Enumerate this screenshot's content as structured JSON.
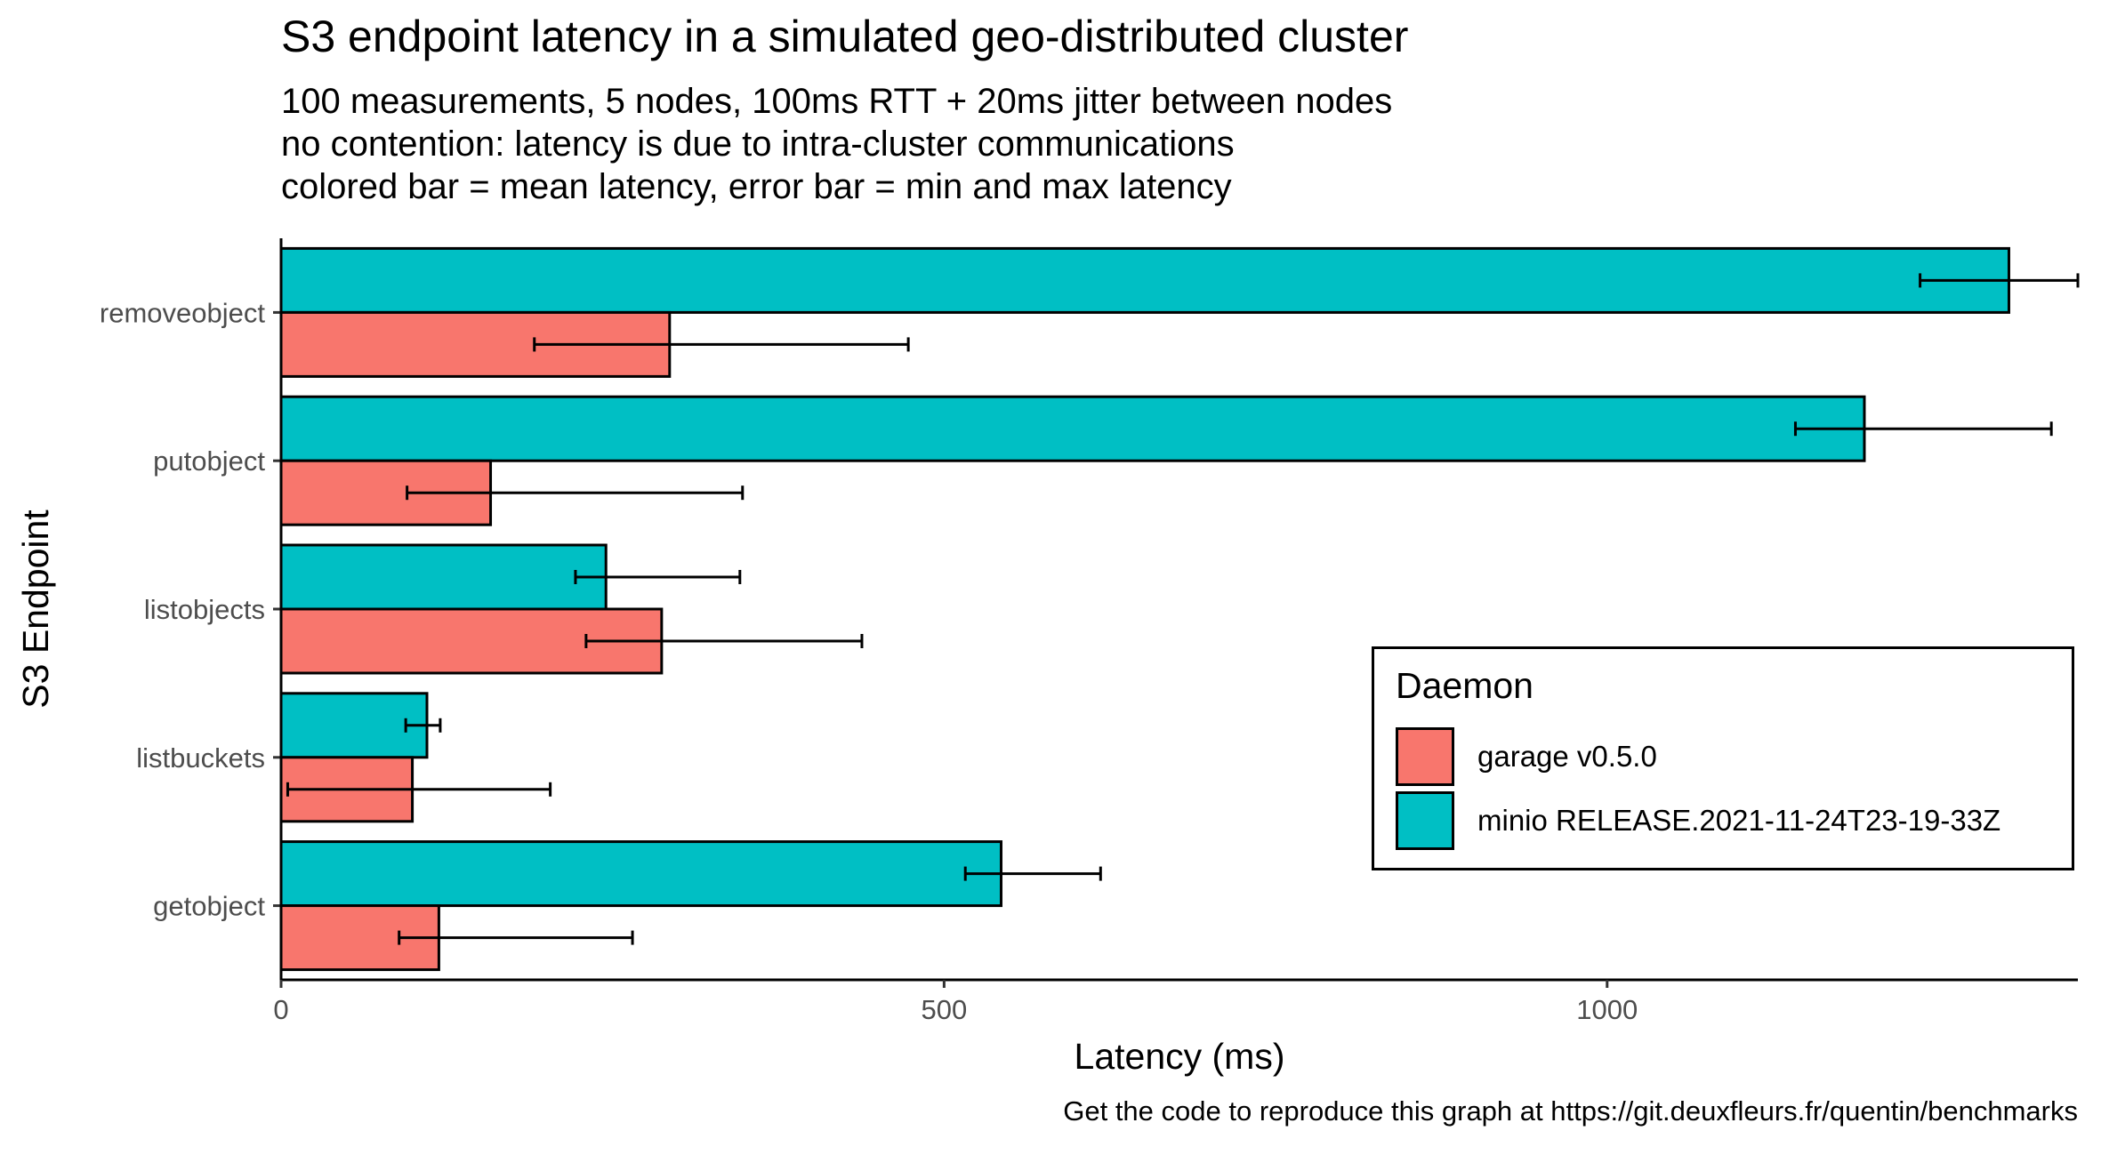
{
  "chart_data": {
    "type": "bar",
    "orientation": "horizontal",
    "title": "S3 endpoint latency in a simulated geo-distributed cluster",
    "subtitle": [
      "100 measurements, 5 nodes, 100ms RTT + 20ms jitter between nodes",
      "no contention: latency is due to intra-cluster communications",
      "colored bar = mean latency, error bar = min and max latency"
    ],
    "caption": "Get the code to reproduce this graph at https://git.deuxfleurs.fr/quentin/benchmarks",
    "xlabel": "Latency (ms)",
    "ylabel": "S3 Endpoint",
    "xlim": [
      0,
      1355
    ],
    "xticks": [
      0,
      500,
      1000
    ],
    "xtick_labels": [
      "0",
      "500",
      "1000"
    ],
    "categories": [
      "removeobject",
      "putobject",
      "listobjects",
      "listbuckets",
      "getobject"
    ],
    "grid": false,
    "legend": {
      "title": "Daemon",
      "position": "right"
    },
    "series": [
      {
        "name": "garage v0.5.0",
        "color": "#F8766D",
        "values": [
          293,
          158,
          287,
          99,
          119
        ],
        "min": [
          191,
          95,
          230,
          5,
          89
        ],
        "max": [
          473,
          348,
          438,
          203,
          265
        ]
      },
      {
        "name": "minio RELEASE.2021-11-24T23-19-33Z",
        "color": "#00BFC4",
        "values": [
          1303,
          1194,
          245,
          110,
          543
        ],
        "min": [
          1236,
          1142,
          222,
          94,
          516
        ],
        "max": [
          1355,
          1335,
          346,
          120,
          618
        ]
      }
    ]
  }
}
